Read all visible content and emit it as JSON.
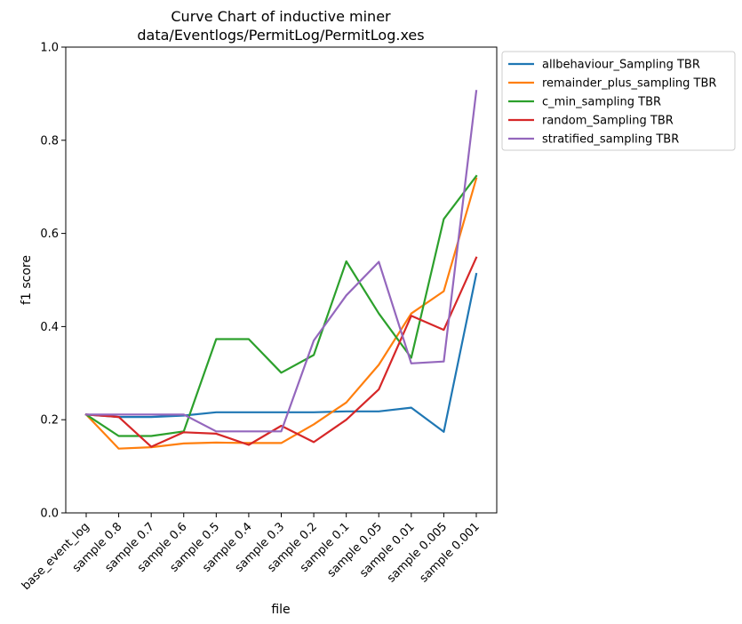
{
  "chart_data": {
    "type": "line",
    "title_lines": [
      "Curve Chart of inductive miner",
      "data/Eventlogs/PermitLog/PermitLog.xes"
    ],
    "xlabel": "file",
    "ylabel": "f1 score",
    "ylim": [
      0.0,
      1.0
    ],
    "yticks": [
      "0.0",
      "0.2",
      "0.4",
      "0.6",
      "0.8",
      "1.0"
    ],
    "grid": false,
    "legend_position": "outside-top-right",
    "categories": [
      "base_event_log",
      "sample 0.8",
      "sample 0.7",
      "sample 0.6",
      "sample 0.5",
      "sample 0.4",
      "sample 0.3",
      "sample 0.2",
      "sample 0.1",
      "sample 0.05",
      "sample 0.01",
      "sample 0.005",
      "sample 0.001"
    ],
    "series": [
      {
        "name": "allbehaviour_Sampling TBR",
        "color": "#1f77b4",
        "values": [
          0.211,
          0.206,
          0.206,
          0.209,
          0.216,
          0.216,
          0.216,
          0.216,
          0.218,
          0.218,
          0.226,
          0.174,
          0.513
        ]
      },
      {
        "name": "remainder_plus_sampling TBR",
        "color": "#ff7f0e",
        "values": [
          0.211,
          0.138,
          0.141,
          0.149,
          0.151,
          0.15,
          0.15,
          0.19,
          0.237,
          0.318,
          0.428,
          0.476,
          0.718
        ]
      },
      {
        "name": "c_min_sampling TBR",
        "color": "#2ca02c",
        "values": [
          0.211,
          0.165,
          0.165,
          0.175,
          0.373,
          0.373,
          0.301,
          0.339,
          0.54,
          0.428,
          0.333,
          0.631,
          0.723
        ]
      },
      {
        "name": "random_Sampling TBR",
        "color": "#d62728",
        "values": [
          0.211,
          0.206,
          0.142,
          0.173,
          0.17,
          0.146,
          0.187,
          0.152,
          0.2,
          0.265,
          0.423,
          0.393,
          0.548
        ]
      },
      {
        "name": "stratified_sampling TBR",
        "color": "#9467bd",
        "values": [
          0.211,
          0.211,
          0.211,
          0.211,
          0.175,
          0.175,
          0.175,
          0.37,
          0.467,
          0.539,
          0.321,
          0.325,
          0.906
        ]
      }
    ]
  }
}
